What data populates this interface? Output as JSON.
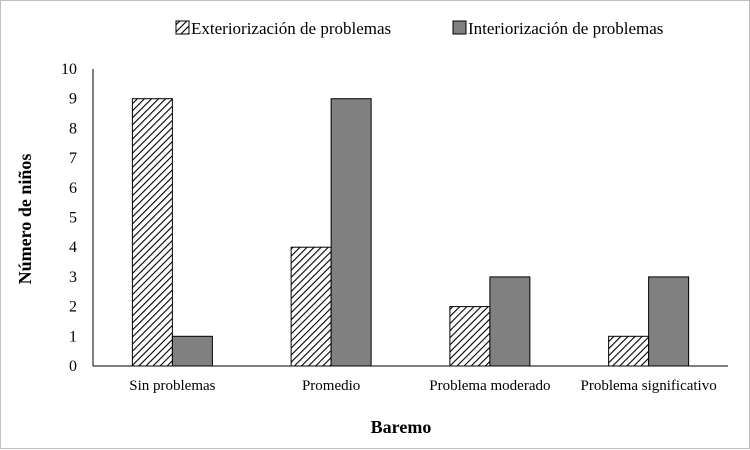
{
  "chart_data": {
    "type": "bar",
    "categories": [
      "Sin problemas",
      "Promedio",
      "Problema moderado",
      "Problema significativo"
    ],
    "series": [
      {
        "name": "Exteriorización de problemas",
        "values": [
          9,
          4,
          2,
          1
        ],
        "pattern": "hatch",
        "color": "#ffffff"
      },
      {
        "name": "Interiorización de problemas",
        "values": [
          1,
          9,
          3,
          3
        ],
        "pattern": "solid",
        "color": "#808080"
      }
    ],
    "xlabel": "Baremo",
    "ylabel": "Número de niños",
    "ylim": [
      0,
      10
    ],
    "yticks": [
      0,
      1,
      2,
      3,
      4,
      5,
      6,
      7,
      8,
      9,
      10
    ],
    "grid": false,
    "legend_position": "top"
  }
}
